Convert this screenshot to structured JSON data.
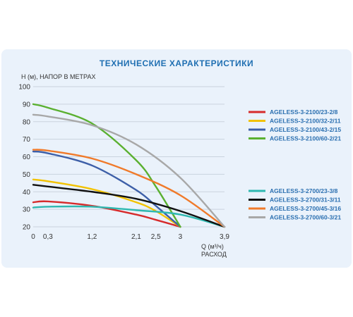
{
  "chart_data": {
    "type": "line",
    "title": "ТЕХНИЧЕСКИЕ  ХАРАКТЕРИСТИКИ",
    "ylabel": "H (м), НАПОР В МЕТРАХ",
    "xlabel": "Q (м³/ч)",
    "xlabel2": "РАСХОД",
    "ylim": [
      20,
      100
    ],
    "yticks": [
      "20",
      "30",
      "40",
      "50",
      "60",
      "70",
      "80",
      "90",
      "100"
    ],
    "xlim": [
      0,
      3.9
    ],
    "xticks": [
      {
        "value": 0,
        "label": "0"
      },
      {
        "value": 0.3,
        "label": "0,3"
      },
      {
        "value": 1.2,
        "label": "1,2"
      },
      {
        "value": 2.1,
        "label": "2,1"
      },
      {
        "value": 2.5,
        "label": "2,5"
      },
      {
        "value": 3,
        "label": "3"
      },
      {
        "value": 3.9,
        "label": "3,9"
      }
    ],
    "grid": true,
    "legend_position": "right",
    "series": [
      {
        "name": "AGELESS-3-2100/23-2/8",
        "color": "#d62b2b",
        "x": [
          0,
          0.3,
          1.2,
          2.1,
          2.5,
          3
        ],
        "y": [
          34,
          34.5,
          32,
          27,
          24,
          20
        ]
      },
      {
        "name": "AGELESS-3-2100/32-2/11",
        "color": "#f2c200",
        "x": [
          0,
          0.3,
          1.2,
          2.1,
          2.5,
          3
        ],
        "y": [
          47,
          46,
          41.5,
          34,
          29,
          20
        ]
      },
      {
        "name": "AGELESS-3-2100/43-2/15",
        "color": "#3d5fa8",
        "x": [
          0,
          0.3,
          1.2,
          2.1,
          2.5,
          3
        ],
        "y": [
          63,
          62,
          55,
          41,
          32,
          20
        ]
      },
      {
        "name": "AGELESS-3-2100/60-2/21",
        "color": "#5ab030",
        "x": [
          0,
          0.3,
          1.2,
          2.1,
          2.5,
          3
        ],
        "y": [
          90,
          88,
          79,
          58,
          43,
          20
        ]
      },
      {
        "name": "AGELESS-3-2700/23-3/8",
        "color": "#2fb8b0",
        "x": [
          0,
          0.3,
          1.2,
          2.1,
          3,
          3.9
        ],
        "y": [
          31,
          31.5,
          31.5,
          29.5,
          27,
          20
        ]
      },
      {
        "name": "AGELESS-3-2700/31-3/11",
        "color": "#111111",
        "x": [
          0,
          0.3,
          1.2,
          2.1,
          3,
          3.9
        ],
        "y": [
          44,
          43,
          40,
          36,
          29,
          20
        ]
      },
      {
        "name": "AGELESS-3-2700/45-3/16",
        "color": "#f07a2a",
        "x": [
          0,
          0.3,
          1.2,
          2.1,
          3,
          3.9
        ],
        "y": [
          64,
          63.5,
          59,
          50,
          38,
          20
        ]
      },
      {
        "name": "AGELESS-3-2700/60-3/21",
        "color": "#a8a8a8",
        "x": [
          0,
          0.3,
          1.2,
          2.1,
          3,
          3.9
        ],
        "y": [
          84,
          83,
          78,
          67,
          48,
          20
        ]
      }
    ]
  }
}
